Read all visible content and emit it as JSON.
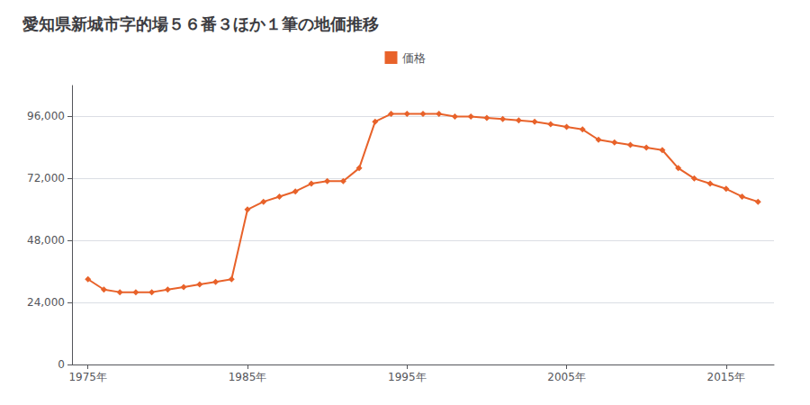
{
  "chart_data": {
    "type": "line",
    "title": "愛知県新城市字的場５６番３ほか１筆の地価推移",
    "x": [
      1975,
      1976,
      1977,
      1978,
      1979,
      1980,
      1981,
      1982,
      1983,
      1984,
      1985,
      1986,
      1987,
      1988,
      1989,
      1990,
      1991,
      1992,
      1993,
      1994,
      1995,
      1996,
      1997,
      1998,
      1999,
      2000,
      2001,
      2002,
      2003,
      2004,
      2005,
      2006,
      2007,
      2008,
      2009,
      2010,
      2011,
      2012,
      2013,
      2014,
      2015,
      2016,
      2017
    ],
    "series": [
      {
        "name": "価格",
        "color": "#E8622A",
        "marker": "diamond",
        "values": [
          33000,
          29000,
          28000,
          28000,
          28000,
          29000,
          30000,
          31000,
          32000,
          33000,
          60000,
          63000,
          65000,
          67000,
          70000,
          71000,
          71000,
          76000,
          94000,
          97000,
          97000,
          97000,
          97000,
          96000,
          96000,
          95500,
          95000,
          94500,
          94000,
          93000,
          92000,
          91000,
          87000,
          86000,
          85000,
          84000,
          83000,
          76000,
          72000,
          70000,
          68000,
          65000,
          63000
        ]
      }
    ],
    "xlim": [
      1974,
      2018
    ],
    "xticks": [
      {
        "value": 1975,
        "label": "1975年"
      },
      {
        "value": 1985,
        "label": "1985年"
      },
      {
        "value": 1995,
        "label": "1995年"
      },
      {
        "value": 2005,
        "label": "2005年"
      },
      {
        "value": 2015,
        "label": "2015年"
      }
    ],
    "ylim": [
      0,
      108000
    ],
    "yticks": [
      0,
      {
        "value": 24000,
        "label": "24,000"
      },
      {
        "value": 48000,
        "label": "48,000"
      },
      {
        "value": 72000,
        "label": "72,000"
      },
      {
        "value": 96000,
        "label": "96,000"
      }
    ],
    "grid": "y",
    "legend": "top"
  }
}
